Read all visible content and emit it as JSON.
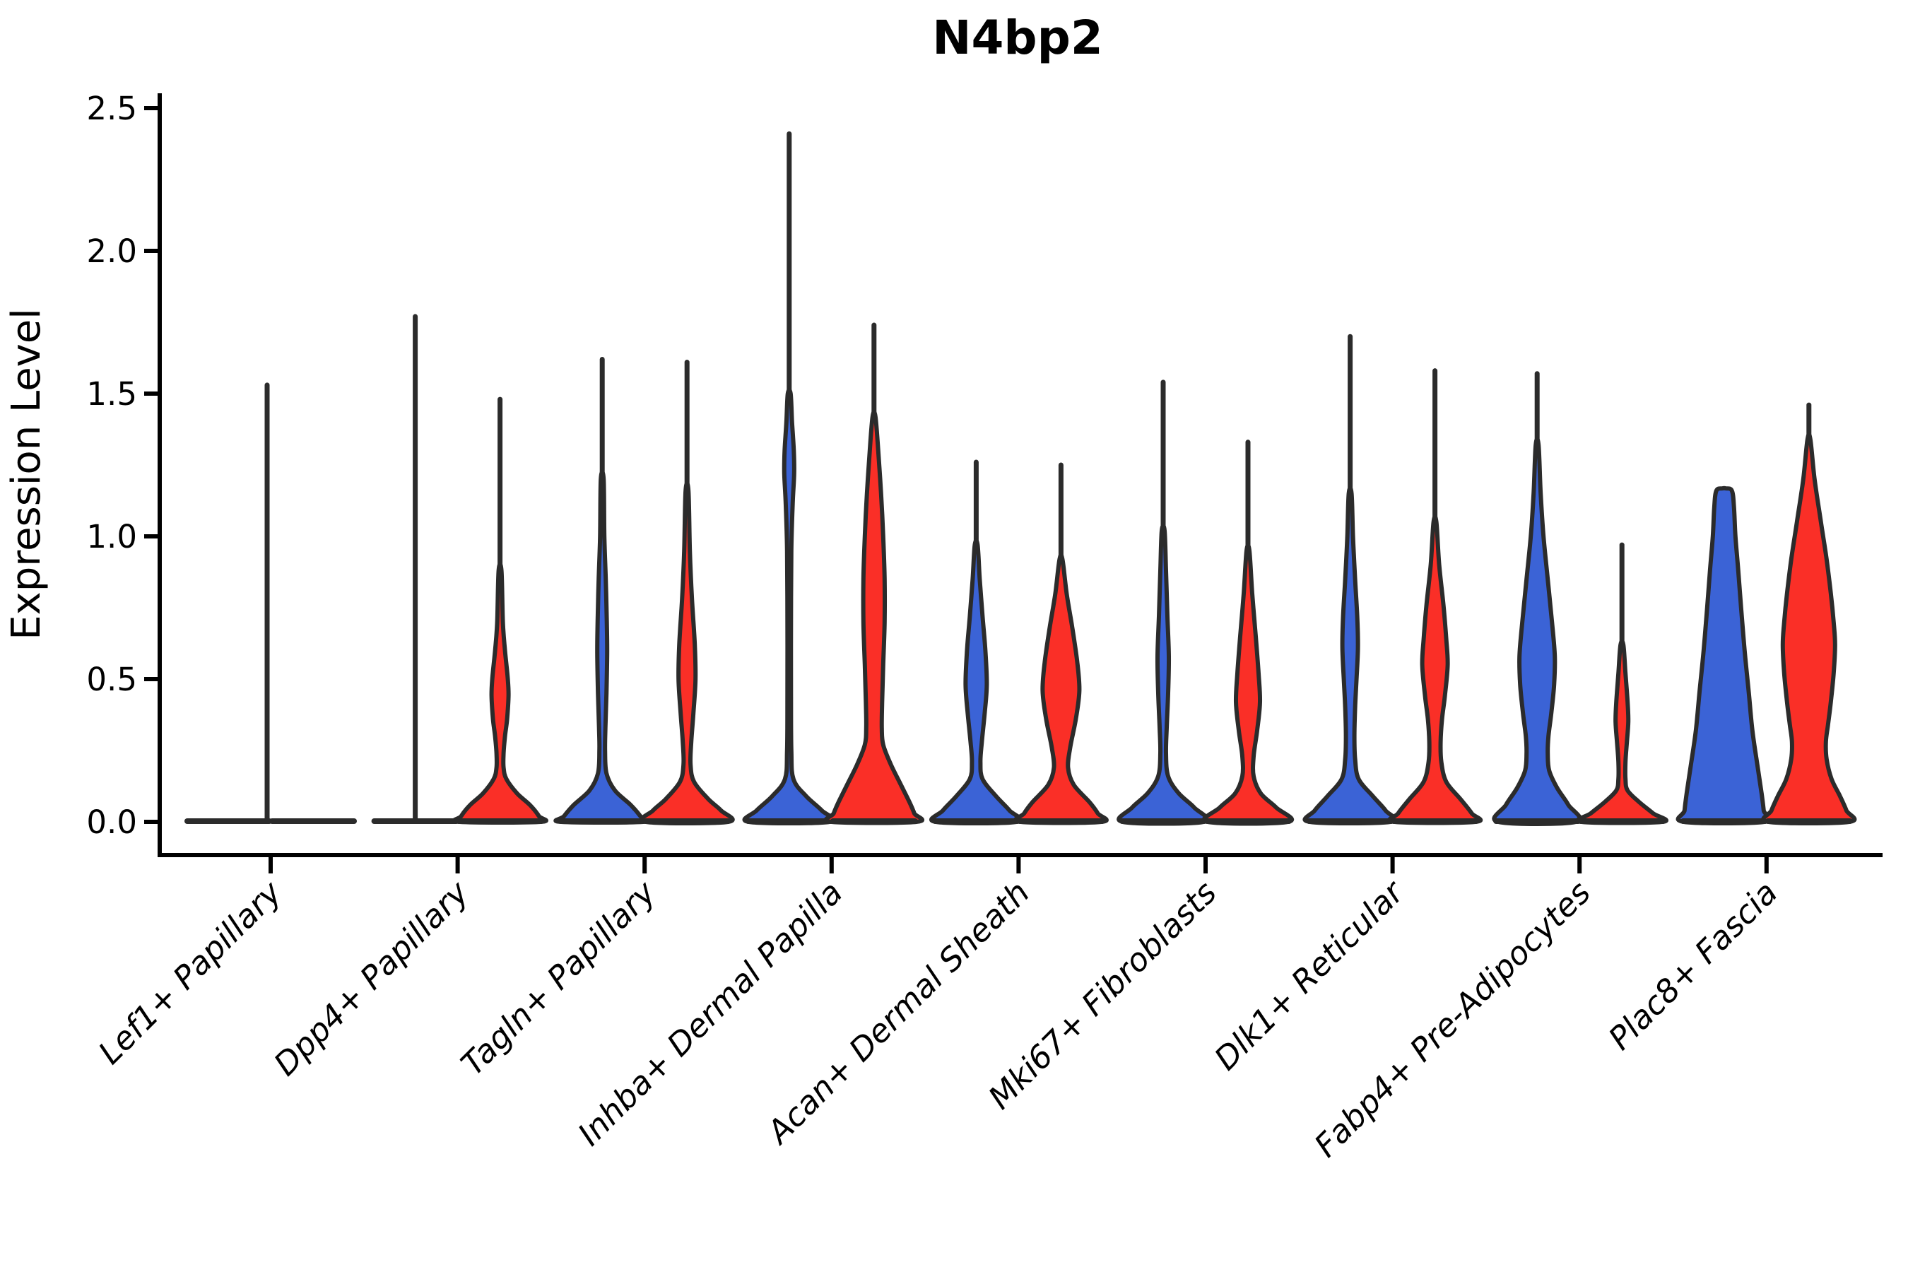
{
  "title": "N4bp2",
  "y_axis": {
    "label": "Expression Level",
    "tick_labels": [
      "0.0",
      "0.5",
      "1.0",
      "1.5",
      "2.0",
      "2.5"
    ]
  },
  "colors": {
    "blue": "#3b63d6",
    "red": "#fa2f27",
    "outline": "#2b2b2b",
    "axis": "#000000"
  },
  "chart_data": {
    "type": "violin",
    "title": "N4bp2",
    "xlabel": "",
    "ylabel": "Expression Level",
    "ylim": [
      0,
      2.5
    ],
    "y_ticks": [
      0.0,
      0.5,
      1.0,
      1.5,
      2.0,
      2.5
    ],
    "grid": false,
    "legend": null,
    "split_colors": [
      "blue",
      "red"
    ],
    "categories": [
      "Lef1+ Papillary",
      "Dpp4+ Papillary",
      "Tagln+ Papillary",
      "Inhba+ Dermal Papilla",
      "Acan+ Dermal Sheath",
      "Mki67+ Fibroblasts",
      "Dlk1+ Reticular",
      "Fabp4+ Pre-Adipocytes",
      "Plac8+ Fascia"
    ],
    "profile_units": "pairs of [expression_value, half_width_px]; most cells sit at 0 (flat base), whisker marks max expression",
    "violins": [
      {
        "category": "Lef1+ Papillary",
        "side": "blue",
        "max": 1.53,
        "flat": true,
        "whisker_x_offset": 55,
        "profile": []
      },
      {
        "category": "Lef1+ Papillary",
        "side": "red",
        "max": 0,
        "flat": true,
        "profile": []
      },
      {
        "category": "Dpp4+ Papillary",
        "side": "blue",
        "max": 1.77,
        "flat": true,
        "profile": []
      },
      {
        "category": "Dpp4+ Papillary",
        "side": "red",
        "max": 1.48,
        "flat": false,
        "profile": [
          [
            0.88,
            2
          ],
          [
            0.7,
            4
          ],
          [
            0.6,
            7
          ],
          [
            0.5,
            11
          ],
          [
            0.44,
            12
          ],
          [
            0.36,
            10
          ],
          [
            0.3,
            7
          ],
          [
            0.24,
            5
          ],
          [
            0.19,
            5
          ],
          [
            0.15,
            9
          ],
          [
            0.1,
            24
          ],
          [
            0.06,
            42
          ],
          [
            0.02,
            55
          ],
          [
            0,
            57
          ]
        ]
      },
      {
        "category": "Tagln+ Papillary",
        "side": "blue",
        "max": 1.62,
        "flat": false,
        "profile": [
          [
            1.2,
            2
          ],
          [
            1.0,
            3
          ],
          [
            0.85,
            5
          ],
          [
            0.7,
            6.5
          ],
          [
            0.59,
            7
          ],
          [
            0.45,
            6
          ],
          [
            0.33,
            4.5
          ],
          [
            0.25,
            4
          ],
          [
            0.17,
            6
          ],
          [
            0.11,
            18
          ],
          [
            0.06,
            40
          ],
          [
            0.02,
            54
          ],
          [
            0,
            58
          ]
        ]
      },
      {
        "category": "Tagln+ Papillary",
        "side": "red",
        "max": 1.61,
        "flat": false,
        "profile": [
          [
            1.16,
            2
          ],
          [
            0.95,
            4
          ],
          [
            0.78,
            7
          ],
          [
            0.62,
            11
          ],
          [
            0.5,
            12
          ],
          [
            0.38,
            9
          ],
          [
            0.28,
            6
          ],
          [
            0.2,
            5
          ],
          [
            0.14,
            10
          ],
          [
            0.08,
            30
          ],
          [
            0.04,
            48
          ],
          [
            0,
            58
          ]
        ]
      },
      {
        "category": "Inhba+ Dermal Papilla",
        "side": "blue",
        "max": 2.41,
        "flat": false,
        "profile": [
          [
            1.5,
            2
          ],
          [
            1.4,
            4
          ],
          [
            1.3,
            6.5
          ],
          [
            1.22,
            7
          ],
          [
            1.12,
            5
          ],
          [
            0.95,
            3
          ],
          [
            0.7,
            2.5
          ],
          [
            0.45,
            2.5
          ],
          [
            0.25,
            3
          ],
          [
            0.15,
            6
          ],
          [
            0.09,
            24
          ],
          [
            0.04,
            46
          ],
          [
            0,
            57
          ]
        ]
      },
      {
        "category": "Inhba+ Dermal Papilla",
        "side": "red",
        "max": 1.74,
        "flat": false,
        "profile": [
          [
            1.42,
            2
          ],
          [
            1.3,
            6
          ],
          [
            1.15,
            10
          ],
          [
            1.0,
            13
          ],
          [
            0.85,
            15
          ],
          [
            0.7,
            15
          ],
          [
            0.55,
            13
          ],
          [
            0.42,
            11.5
          ],
          [
            0.33,
            11
          ],
          [
            0.27,
            13
          ],
          [
            0.2,
            24
          ],
          [
            0.13,
            38
          ],
          [
            0.07,
            50
          ],
          [
            0.03,
            57
          ],
          [
            0,
            60
          ]
        ]
      },
      {
        "category": "Acan+ Dermal Sheath",
        "side": "blue",
        "max": 1.26,
        "flat": false,
        "profile": [
          [
            0.97,
            2
          ],
          [
            0.85,
            5
          ],
          [
            0.72,
            9
          ],
          [
            0.6,
            13
          ],
          [
            0.48,
            15
          ],
          [
            0.38,
            12
          ],
          [
            0.28,
            8
          ],
          [
            0.21,
            6
          ],
          [
            0.15,
            9
          ],
          [
            0.09,
            28
          ],
          [
            0.04,
            47
          ],
          [
            0,
            57
          ]
        ]
      },
      {
        "category": "Acan+ Dermal Sheath",
        "side": "red",
        "max": 1.25,
        "flat": false,
        "profile": [
          [
            0.92,
            2
          ],
          [
            0.8,
            8
          ],
          [
            0.68,
            16
          ],
          [
            0.56,
            23
          ],
          [
            0.46,
            26
          ],
          [
            0.36,
            21
          ],
          [
            0.26,
            13
          ],
          [
            0.19,
            10
          ],
          [
            0.13,
            18
          ],
          [
            0.07,
            40
          ],
          [
            0.03,
            52
          ],
          [
            0,
            57
          ]
        ]
      },
      {
        "category": "Mki67+ Fibroblasts",
        "side": "blue",
        "max": 1.54,
        "flat": false,
        "profile": [
          [
            1.02,
            2
          ],
          [
            0.88,
            4
          ],
          [
            0.72,
            6
          ],
          [
            0.58,
            8
          ],
          [
            0.45,
            7
          ],
          [
            0.33,
            5
          ],
          [
            0.24,
            4
          ],
          [
            0.16,
            7
          ],
          [
            0.1,
            22
          ],
          [
            0.05,
            44
          ],
          [
            0,
            57
          ]
        ]
      },
      {
        "category": "Mki67+ Fibroblasts",
        "side": "red",
        "max": 1.33,
        "flat": false,
        "profile": [
          [
            0.95,
            2
          ],
          [
            0.8,
            6
          ],
          [
            0.65,
            11
          ],
          [
            0.52,
            15
          ],
          [
            0.42,
            17
          ],
          [
            0.32,
            13
          ],
          [
            0.23,
            8
          ],
          [
            0.16,
            8
          ],
          [
            0.1,
            18
          ],
          [
            0.05,
            40
          ],
          [
            0,
            57
          ]
        ]
      },
      {
        "category": "Dlk1+ Reticular",
        "side": "blue",
        "max": 1.7,
        "flat": false,
        "profile": [
          [
            1.15,
            2
          ],
          [
            1.0,
            4
          ],
          [
            0.85,
            7
          ],
          [
            0.72,
            10
          ],
          [
            0.61,
            11
          ],
          [
            0.5,
            9
          ],
          [
            0.4,
            7
          ],
          [
            0.3,
            6
          ],
          [
            0.22,
            7
          ],
          [
            0.15,
            12
          ],
          [
            0.09,
            32
          ],
          [
            0.04,
            50
          ],
          [
            0,
            57
          ]
        ]
      },
      {
        "category": "Dlk1+ Reticular",
        "side": "red",
        "max": 1.58,
        "flat": false,
        "profile": [
          [
            1.05,
            2
          ],
          [
            0.9,
            6
          ],
          [
            0.76,
            12
          ],
          [
            0.64,
            16
          ],
          [
            0.55,
            18
          ],
          [
            0.44,
            14
          ],
          [
            0.36,
            10
          ],
          [
            0.28,
            8
          ],
          [
            0.21,
            9
          ],
          [
            0.14,
            16
          ],
          [
            0.08,
            36
          ],
          [
            0.03,
            52
          ],
          [
            0,
            57
          ]
        ]
      },
      {
        "category": "Fabp4+ Pre-Adipocytes",
        "side": "blue",
        "max": 1.57,
        "flat": false,
        "profile": [
          [
            1.32,
            2
          ],
          [
            1.15,
            5
          ],
          [
            1.0,
            9
          ],
          [
            0.85,
            15
          ],
          [
            0.7,
            21
          ],
          [
            0.58,
            25
          ],
          [
            0.48,
            24
          ],
          [
            0.38,
            20
          ],
          [
            0.3,
            16
          ],
          [
            0.24,
            15
          ],
          [
            0.18,
            17
          ],
          [
            0.12,
            28
          ],
          [
            0.06,
            44
          ],
          [
            0,
            55
          ]
        ]
      },
      {
        "category": "Fabp4+ Pre-Adipocytes",
        "side": "red",
        "max": 0.97,
        "flat": false,
        "profile": [
          [
            0.62,
            2
          ],
          [
            0.52,
            5
          ],
          [
            0.42,
            8
          ],
          [
            0.35,
            9
          ],
          [
            0.28,
            7
          ],
          [
            0.21,
            5
          ],
          [
            0.15,
            5
          ],
          [
            0.11,
            8
          ],
          [
            0.07,
            24
          ],
          [
            0.03,
            44
          ],
          [
            0,
            57
          ]
        ]
      },
      {
        "category": "Plac8+ Fascia",
        "side": "blue",
        "max": 1.16,
        "flat": false,
        "no_whisker": true,
        "profile": [
          [
            1.168,
            2
          ],
          [
            1.16,
            11
          ],
          [
            1.1,
            14
          ],
          [
            1.0,
            16
          ],
          [
            0.88,
            20
          ],
          [
            0.75,
            24
          ],
          [
            0.6,
            29
          ],
          [
            0.45,
            35
          ],
          [
            0.32,
            40
          ],
          [
            0.2,
            47
          ],
          [
            0.1,
            53
          ],
          [
            0.04,
            56
          ],
          [
            0,
            57
          ]
        ]
      },
      {
        "category": "Plac8+ Fascia",
        "side": "red",
        "max": 1.46,
        "flat": false,
        "profile": [
          [
            1.34,
            2
          ],
          [
            1.2,
            8
          ],
          [
            1.05,
            17
          ],
          [
            0.92,
            25
          ],
          [
            0.8,
            31
          ],
          [
            0.7,
            35
          ],
          [
            0.62,
            37
          ],
          [
            0.52,
            35
          ],
          [
            0.42,
            31
          ],
          [
            0.34,
            27
          ],
          [
            0.28,
            24
          ],
          [
            0.22,
            25
          ],
          [
            0.15,
            32
          ],
          [
            0.09,
            44
          ],
          [
            0.04,
            53
          ],
          [
            0,
            57
          ]
        ]
      }
    ]
  },
  "layout_note": "single figure, no legend, white background"
}
